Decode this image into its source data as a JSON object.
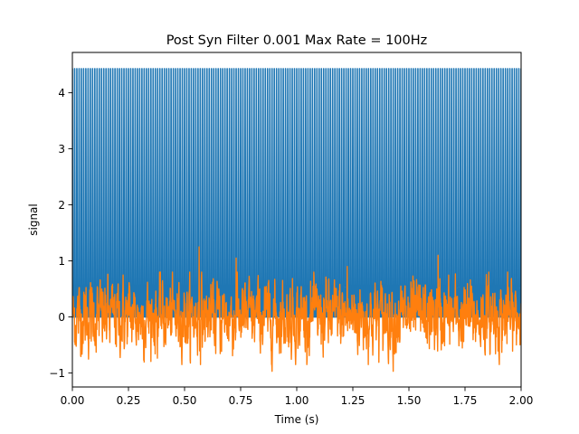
{
  "chart_data": {
    "type": "line",
    "title": "Post Syn Filter 0.001 Max Rate = 100Hz",
    "xlabel": "Time (s)",
    "ylabel": "signal",
    "xlim": [
      0.0,
      2.0
    ],
    "ylim": [
      -1.25,
      4.72
    ],
    "x_ticks": [
      0.0,
      0.25,
      0.5,
      0.75,
      1.0,
      1.25,
      1.5,
      1.75,
      2.0
    ],
    "x_tick_labels": [
      "0.00",
      "0.25",
      "0.50",
      "0.75",
      "1.00",
      "1.25",
      "1.50",
      "1.75",
      "2.00"
    ],
    "y_ticks": [
      -1,
      0,
      1,
      2,
      3,
      4
    ],
    "y_tick_labels": [
      "−1",
      "0",
      "1",
      "2",
      "3",
      "4"
    ],
    "grid": false,
    "legend": null,
    "series": [
      {
        "color": "#1f77b4",
        "description": "periodic spike train",
        "spike_period_s": 0.01,
        "spike_peak": 4.43,
        "baseline": 0.0,
        "spike_width_s": 0.004
      },
      {
        "color": "#ff7f0e",
        "description": "noisy filtered signal",
        "mean": 0.0,
        "min": -0.97,
        "max": 1.25,
        "peaks": [
          {
            "x": 0.565,
            "y": 1.25
          },
          {
            "x": 0.73,
            "y": 1.05
          },
          {
            "x": 1.225,
            "y": 0.9
          },
          {
            "x": 1.63,
            "y": 1.1
          },
          {
            "x": 0.89,
            "y": -0.97
          },
          {
            "x": 1.43,
            "y": -0.97
          }
        ]
      }
    ]
  }
}
